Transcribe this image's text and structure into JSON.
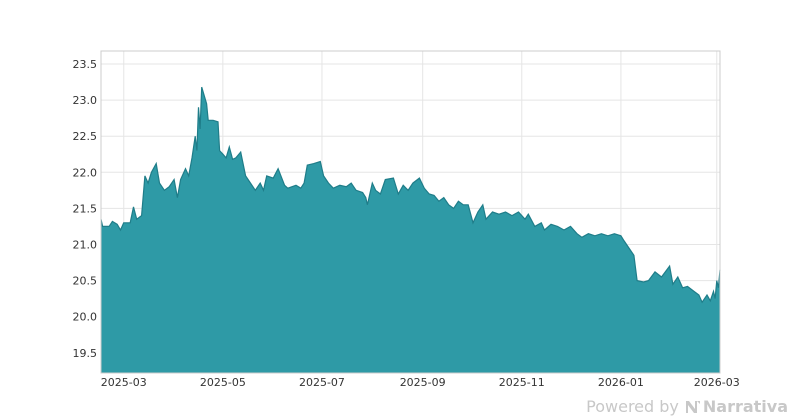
{
  "chart_data": {
    "type": "area",
    "title": "",
    "xlabel": "",
    "ylabel": "",
    "x_ticks": [
      "2025-03",
      "2025-05",
      "2025-07",
      "2025-09",
      "2025-11",
      "2026-01",
      "2026-03"
    ],
    "y_ticks": [
      "19.5",
      "20.0",
      "20.5",
      "21.0",
      "21.5",
      "22.0",
      "22.5",
      "23.0",
      "23.5"
    ],
    "xlim": [
      "2025-02-15",
      "2026-03-03"
    ],
    "ylim": [
      19.22,
      23.68
    ],
    "grid": true,
    "fill_color": "#2e9aa6",
    "line_color": "#1f7d89",
    "series": [
      {
        "points": [
          [
            "2025-02-15",
            21.35
          ],
          [
            "2025-02-16",
            21.25
          ],
          [
            "2025-02-20",
            21.25
          ],
          [
            "2025-02-22",
            21.32
          ],
          [
            "2025-02-25",
            21.28
          ],
          [
            "2025-02-27",
            21.2
          ],
          [
            "2025-03-01",
            21.3
          ],
          [
            "2025-03-05",
            21.3
          ],
          [
            "2025-03-07",
            21.52
          ],
          [
            "2025-03-09",
            21.35
          ],
          [
            "2025-03-12",
            21.4
          ],
          [
            "2025-03-14",
            21.95
          ],
          [
            "2025-03-16",
            21.85
          ],
          [
            "2025-03-18",
            22.0
          ],
          [
            "2025-03-21",
            22.12
          ],
          [
            "2025-03-23",
            21.85
          ],
          [
            "2025-03-26",
            21.75
          ],
          [
            "2025-03-29",
            21.8
          ],
          [
            "2025-04-01",
            21.9
          ],
          [
            "2025-04-03",
            21.65
          ],
          [
            "2025-04-05",
            21.9
          ],
          [
            "2025-04-08",
            22.05
          ],
          [
            "2025-04-10",
            21.95
          ],
          [
            "2025-04-12",
            22.2
          ],
          [
            "2025-04-14",
            22.5
          ],
          [
            "2025-04-15",
            22.3
          ],
          [
            "2025-04-16",
            22.9
          ],
          [
            "2025-04-17",
            22.6
          ],
          [
            "2025-04-18",
            23.18
          ],
          [
            "2025-04-21",
            22.95
          ],
          [
            "2025-04-22",
            22.72
          ],
          [
            "2025-04-25",
            22.72
          ],
          [
            "2025-04-28",
            22.7
          ],
          [
            "2025-04-29",
            22.3
          ],
          [
            "2025-05-01",
            22.25
          ],
          [
            "2025-05-03",
            22.2
          ],
          [
            "2025-05-05",
            22.35
          ],
          [
            "2025-05-07",
            22.18
          ],
          [
            "2025-05-09",
            22.2
          ],
          [
            "2025-05-12",
            22.28
          ],
          [
            "2025-05-15",
            21.95
          ],
          [
            "2025-05-18",
            21.85
          ],
          [
            "2025-05-21",
            21.75
          ],
          [
            "2025-05-24",
            21.85
          ],
          [
            "2025-05-26",
            21.75
          ],
          [
            "2025-05-28",
            21.95
          ],
          [
            "2025-06-01",
            21.92
          ],
          [
            "2025-06-04",
            22.05
          ],
          [
            "2025-06-08",
            21.82
          ],
          [
            "2025-06-10",
            21.78
          ],
          [
            "2025-06-15",
            21.82
          ],
          [
            "2025-06-18",
            21.78
          ],
          [
            "2025-06-20",
            21.85
          ],
          [
            "2025-06-22",
            22.1
          ],
          [
            "2025-06-26",
            22.12
          ],
          [
            "2025-06-30",
            22.15
          ],
          [
            "2025-07-02",
            21.95
          ],
          [
            "2025-07-05",
            21.85
          ],
          [
            "2025-07-08",
            21.78
          ],
          [
            "2025-07-12",
            21.82
          ],
          [
            "2025-07-16",
            21.8
          ],
          [
            "2025-07-19",
            21.85
          ],
          [
            "2025-07-22",
            21.75
          ],
          [
            "2025-07-26",
            21.72
          ],
          [
            "2025-07-28",
            21.65
          ],
          [
            "2025-07-29",
            21.55
          ],
          [
            "2025-08-01",
            21.85
          ],
          [
            "2025-08-03",
            21.75
          ],
          [
            "2025-08-06",
            21.7
          ],
          [
            "2025-08-09",
            21.9
          ],
          [
            "2025-08-14",
            21.92
          ],
          [
            "2025-08-17",
            21.7
          ],
          [
            "2025-08-20",
            21.82
          ],
          [
            "2025-08-23",
            21.75
          ],
          [
            "2025-08-26",
            21.85
          ],
          [
            "2025-08-30",
            21.92
          ],
          [
            "2025-09-02",
            21.78
          ],
          [
            "2025-09-05",
            21.7
          ],
          [
            "2025-09-08",
            21.68
          ],
          [
            "2025-09-11",
            21.6
          ],
          [
            "2025-09-14",
            21.65
          ],
          [
            "2025-09-17",
            21.55
          ],
          [
            "2025-09-20",
            21.5
          ],
          [
            "2025-09-23",
            21.6
          ],
          [
            "2025-09-26",
            21.55
          ],
          [
            "2025-09-29",
            21.55
          ],
          [
            "2025-10-02",
            21.3
          ],
          [
            "2025-10-05",
            21.45
          ],
          [
            "2025-10-08",
            21.55
          ],
          [
            "2025-10-10",
            21.35
          ],
          [
            "2025-10-14",
            21.45
          ],
          [
            "2025-10-18",
            21.42
          ],
          [
            "2025-10-22",
            21.45
          ],
          [
            "2025-10-26",
            21.4
          ],
          [
            "2025-10-30",
            21.45
          ],
          [
            "2025-11-03",
            21.35
          ],
          [
            "2025-11-05",
            21.42
          ],
          [
            "2025-11-09",
            21.25
          ],
          [
            "2025-11-13",
            21.3
          ],
          [
            "2025-11-15",
            21.2
          ],
          [
            "2025-11-19",
            21.28
          ],
          [
            "2025-11-23",
            21.25
          ],
          [
            "2025-11-27",
            21.2
          ],
          [
            "2025-12-01",
            21.25
          ],
          [
            "2025-12-05",
            21.15
          ],
          [
            "2025-12-08",
            21.1
          ],
          [
            "2025-12-12",
            21.15
          ],
          [
            "2025-12-16",
            21.12
          ],
          [
            "2025-12-20",
            21.15
          ],
          [
            "2025-12-24",
            21.12
          ],
          [
            "2025-12-28",
            21.15
          ],
          [
            "2026-01-01",
            21.12
          ],
          [
            "2026-01-03",
            21.05
          ],
          [
            "2026-01-06",
            20.95
          ],
          [
            "2026-01-09",
            20.85
          ],
          [
            "2026-01-11",
            20.5
          ],
          [
            "2026-01-15",
            20.48
          ],
          [
            "2026-01-18",
            20.5
          ],
          [
            "2026-01-22",
            20.62
          ],
          [
            "2026-01-26",
            20.55
          ],
          [
            "2026-01-31",
            20.7
          ],
          [
            "2026-02-02",
            20.45
          ],
          [
            "2026-02-05",
            20.55
          ],
          [
            "2026-02-08",
            20.4
          ],
          [
            "2026-02-11",
            20.42
          ],
          [
            "2026-02-15",
            20.35
          ],
          [
            "2026-02-18",
            20.3
          ],
          [
            "2026-02-20",
            20.2
          ],
          [
            "2026-02-23",
            20.3
          ],
          [
            "2026-02-25",
            20.22
          ],
          [
            "2026-02-27",
            20.35
          ],
          [
            "2026-02-28",
            20.25
          ],
          [
            "2026-03-01",
            20.5
          ],
          [
            "2026-03-02",
            20.4
          ],
          [
            "2026-03-03",
            20.65
          ]
        ]
      }
    ]
  },
  "footer": {
    "prefix": "Powered by",
    "brand": "Narrativa"
  }
}
